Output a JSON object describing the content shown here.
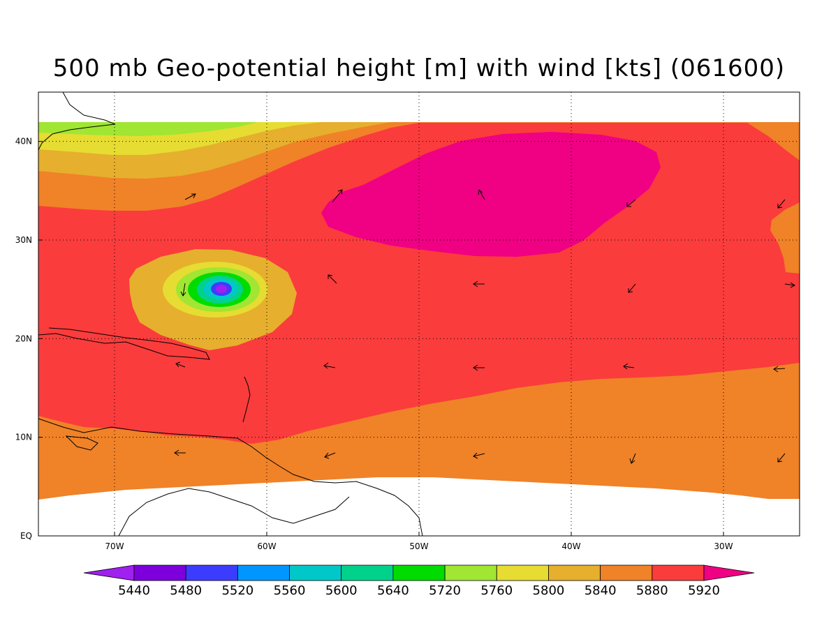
{
  "title": "500 mb Geo-potential height [m] with wind [kts] (061600)",
  "map": {
    "lon_range": [
      -75,
      -25
    ],
    "lat_range": [
      0,
      45
    ],
    "lon_ticks": [
      {
        "value": -70,
        "label": "70W"
      },
      {
        "value": -60,
        "label": "60W"
      },
      {
        "value": -50,
        "label": "50W"
      },
      {
        "value": -40,
        "label": "40W"
      },
      {
        "value": -30,
        "label": "30W"
      }
    ],
    "lat_ticks": [
      {
        "value": 0,
        "label": "EQ"
      },
      {
        "value": 10,
        "label": "10N"
      },
      {
        "value": 20,
        "label": "20N"
      },
      {
        "value": 30,
        "label": "30N"
      },
      {
        "value": 40,
        "label": "40N"
      }
    ],
    "grid": "dotted"
  },
  "colorbar": {
    "levels": [
      "5440",
      "5480",
      "5520",
      "5560",
      "5600",
      "5640",
      "5720",
      "5760",
      "5800",
      "5840",
      "5880",
      "5920"
    ],
    "colors": [
      "#a020f0",
      "#7d00dc",
      "#3c3cff",
      "#0096ff",
      "#00c8c8",
      "#00d28c",
      "#00dc00",
      "#a0e632",
      "#e6dc32",
      "#e6af2d",
      "#f08228",
      "#fa3c3c",
      "#f00082"
    ]
  },
  "fill_colors": {
    "c5840": "#f08228",
    "c5880": "#fa3c3c",
    "c5920": "#f00082",
    "c5800": "#e6af2d",
    "c5760": "#e6dc32",
    "c5720": "#a0e632"
  }
}
